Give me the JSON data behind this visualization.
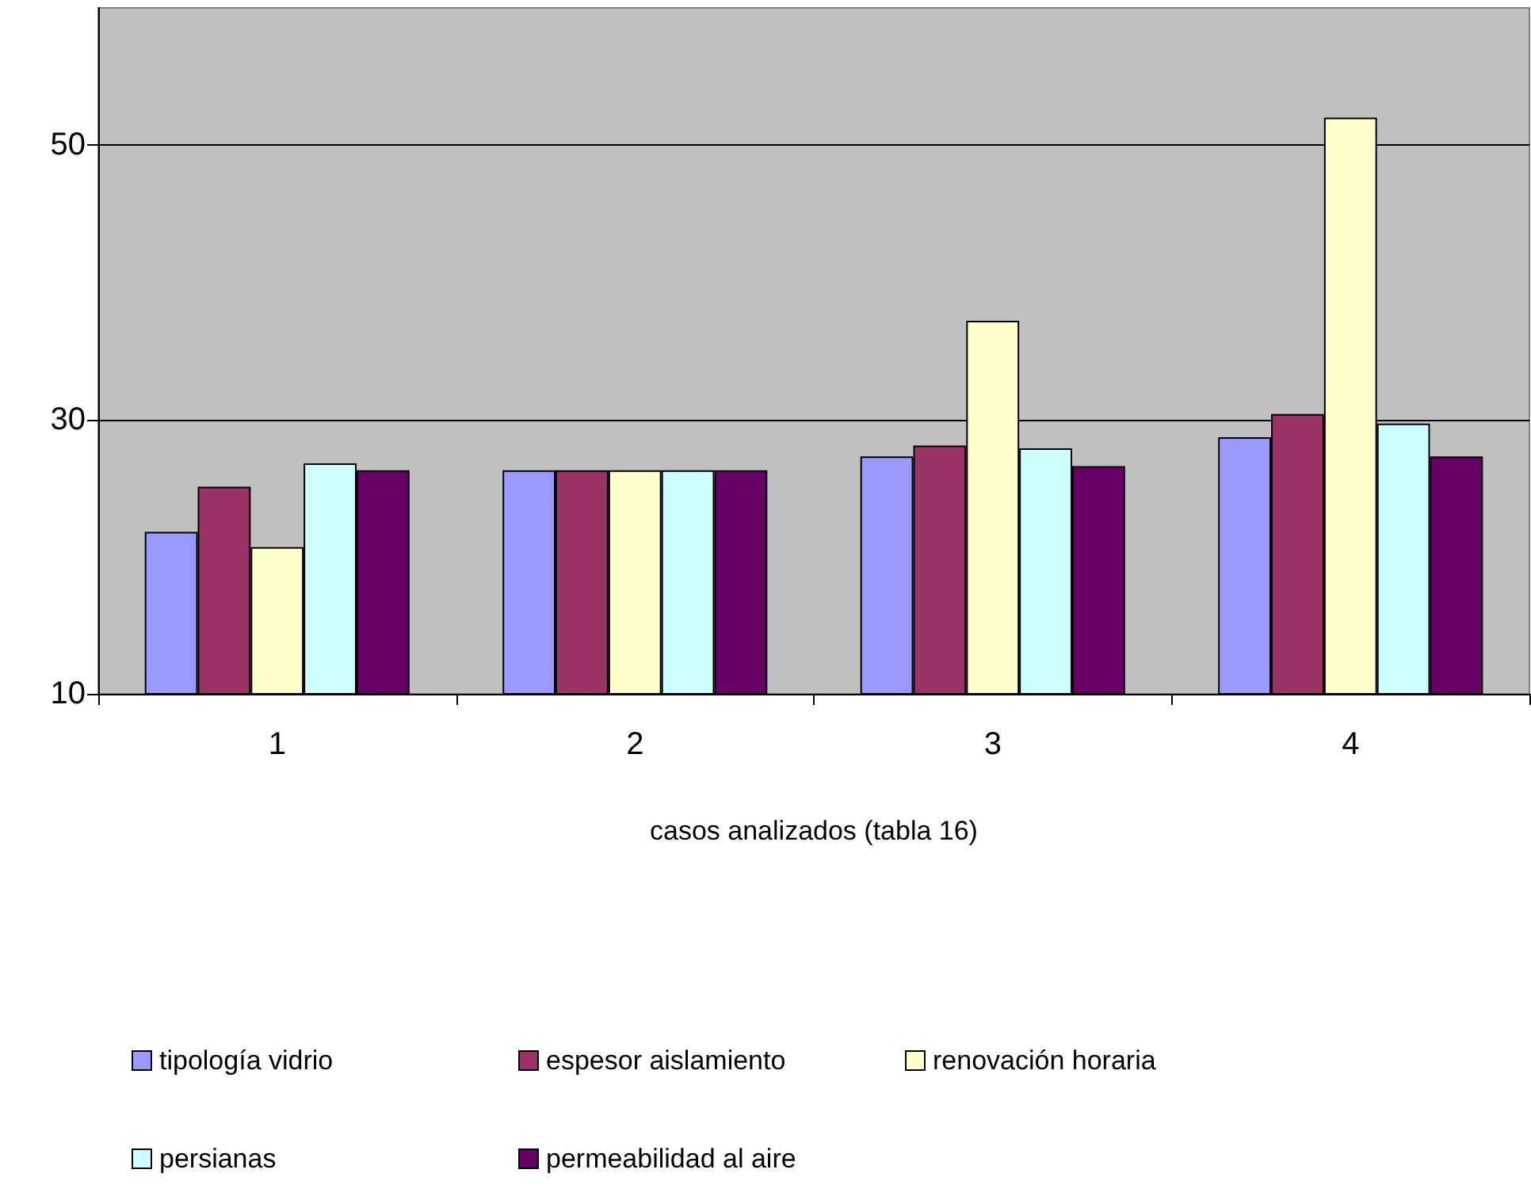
{
  "chart_data": {
    "type": "bar",
    "xlabel": "casos analizados (tabla 16)",
    "categories": [
      "1",
      "2",
      "3",
      "4"
    ],
    "series": [
      {
        "name": "tipología vidrio",
        "color": "#9999ff",
        "values": [
          21.8,
          26.3,
          27.3,
          28.7
        ]
      },
      {
        "name": "espesor aislamiento",
        "color": "#993366",
        "values": [
          25.1,
          26.3,
          28.1,
          30.4
        ]
      },
      {
        "name": "renovación horaria",
        "color": "#ffffcc",
        "values": [
          20.7,
          26.3,
          37.2,
          52.0
        ]
      },
      {
        "name": "persianas",
        "color": "#ccffff",
        "values": [
          26.8,
          26.3,
          27.9,
          29.7
        ]
      },
      {
        "name": "permeabilidad al aire",
        "color": "#660066",
        "values": [
          26.3,
          26.3,
          26.6,
          27.3
        ]
      }
    ],
    "ylim": [
      10,
      60
    ],
    "yticks": [
      10,
      30,
      50
    ],
    "grid": "y",
    "legend": "bottom"
  }
}
